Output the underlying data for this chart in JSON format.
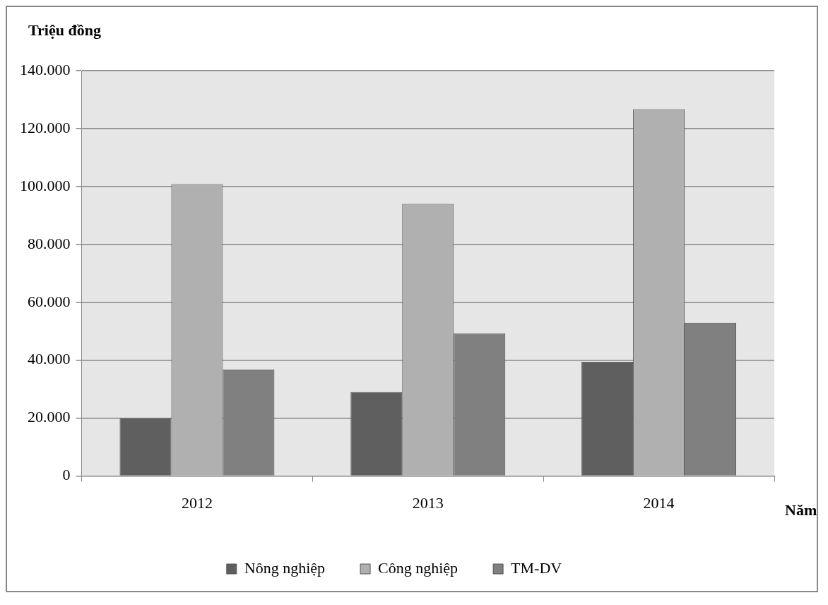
{
  "chart_data": {
    "type": "bar",
    "xlabel": "Năm",
    "ylabel": "Triệu đồng",
    "categories": [
      "2012",
      "2013",
      "2014"
    ],
    "series": [
      {
        "name": "Nông nghiệp",
        "color": "#5f5f5f",
        "values": [
          20000,
          29000,
          39500
        ]
      },
      {
        "name": "Công nghiệp",
        "color": "#b0b0b0",
        "values": [
          100800,
          94000,
          126700
        ]
      },
      {
        "name": "TM-DV",
        "color": "#808080",
        "values": [
          36800,
          49300,
          52900
        ]
      }
    ],
    "ylim": [
      0,
      140000
    ],
    "yticks": [
      {
        "value": 0,
        "label": "0"
      },
      {
        "value": 20000,
        "label": "20.000"
      },
      {
        "value": 40000,
        "label": "40.000"
      },
      {
        "value": 60000,
        "label": "60.000"
      },
      {
        "value": 80000,
        "label": "80.000"
      },
      {
        "value": 100000,
        "label": "100.000"
      },
      {
        "value": 120000,
        "label": "120.000"
      },
      {
        "value": 140000,
        "label": "140.000"
      }
    ],
    "grid": "y",
    "legend": "bottom"
  }
}
